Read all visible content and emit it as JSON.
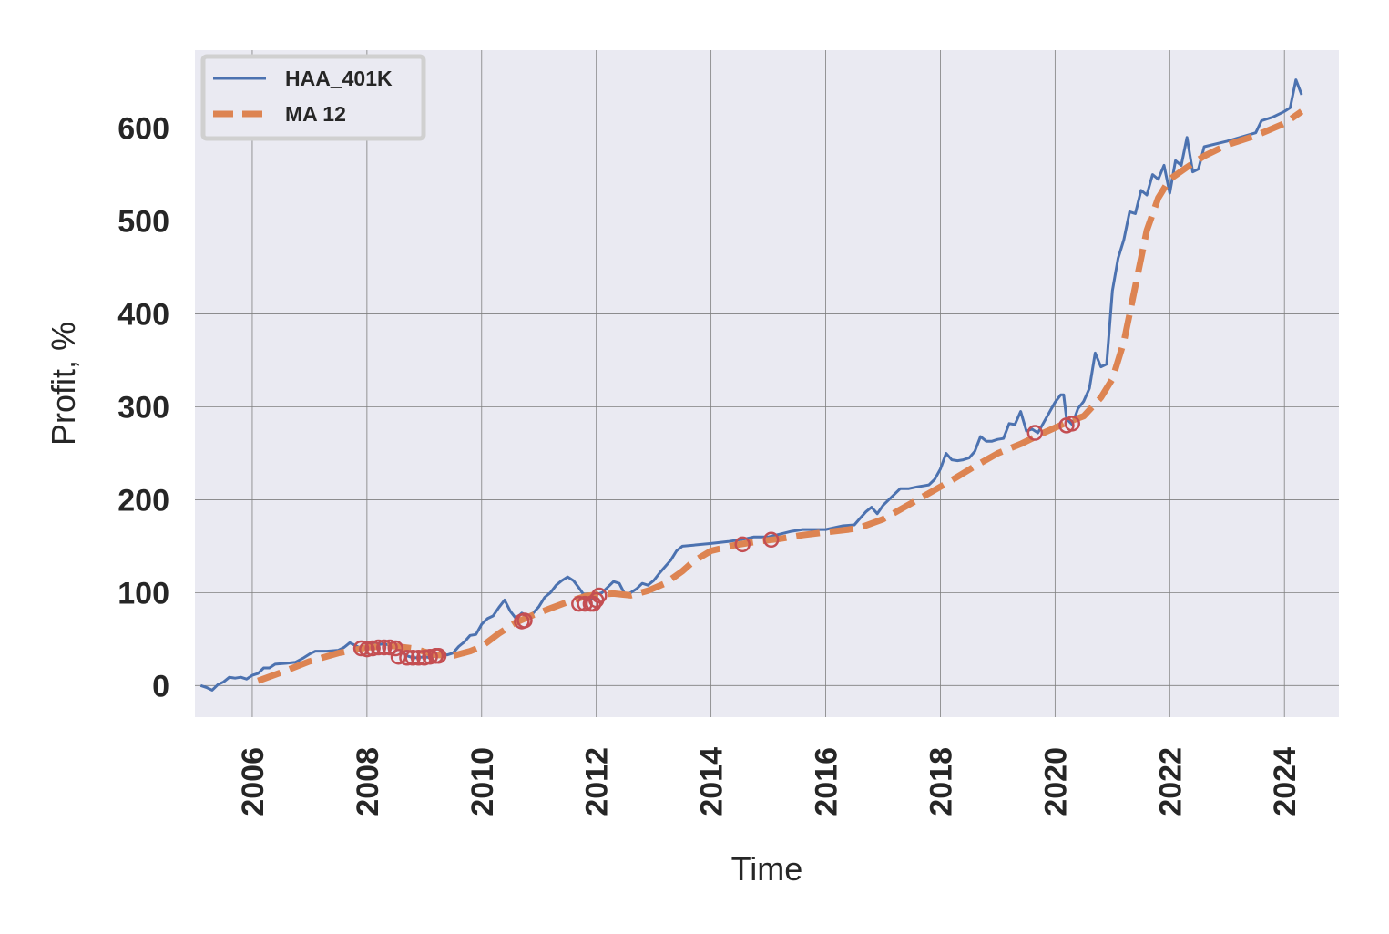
{
  "chart_data": {
    "type": "line",
    "xlabel": "Time",
    "ylabel": "Profit, %",
    "xlim": [
      2005.0,
      2024.95
    ],
    "ylim": [
      -34,
      684
    ],
    "x_ticks": [
      2006,
      2008,
      2010,
      2012,
      2014,
      2016,
      2018,
      2020,
      2022,
      2024
    ],
    "x_tick_labels": [
      "2006",
      "2008",
      "2010",
      "2012",
      "2014",
      "2016",
      "2018",
      "2020",
      "2022",
      "2024"
    ],
    "y_ticks": [
      0,
      100,
      200,
      300,
      400,
      500,
      600
    ],
    "y_tick_labels": [
      "0",
      "100",
      "200",
      "300",
      "400",
      "500",
      "600"
    ],
    "grid": true,
    "legend": "top-left",
    "colors": {
      "background": "#eaeaf2",
      "grid": "#7f7f7f",
      "series1": "#4c72b0",
      "series2": "#dd8452",
      "markers": "#c44e52"
    },
    "series": [
      {
        "name": "HAA_401K",
        "style": "solid",
        "points": [
          [
            2005.1,
            0
          ],
          [
            2005.2,
            -2
          ],
          [
            2005.3,
            -5
          ],
          [
            2005.4,
            1
          ],
          [
            2005.5,
            4
          ],
          [
            2005.6,
            9
          ],
          [
            2005.7,
            8
          ],
          [
            2005.8,
            9
          ],
          [
            2005.9,
            7
          ],
          [
            2006.0,
            11
          ],
          [
            2006.1,
            13
          ],
          [
            2006.2,
            19
          ],
          [
            2006.3,
            19
          ],
          [
            2006.4,
            23
          ],
          [
            2006.6,
            24
          ],
          [
            2006.75,
            25
          ],
          [
            2006.9,
            30
          ],
          [
            2007.0,
            34
          ],
          [
            2007.1,
            37
          ],
          [
            2007.3,
            37
          ],
          [
            2007.5,
            38
          ],
          [
            2007.6,
            41
          ],
          [
            2007.7,
            46
          ],
          [
            2007.8,
            43
          ],
          [
            2007.9,
            40
          ],
          [
            2008.0,
            44
          ],
          [
            2008.1,
            47
          ],
          [
            2008.2,
            44
          ],
          [
            2008.3,
            45
          ],
          [
            2008.4,
            43
          ],
          [
            2008.5,
            44
          ],
          [
            2008.6,
            37
          ],
          [
            2008.7,
            32
          ],
          [
            2008.8,
            30
          ],
          [
            2008.9,
            30
          ],
          [
            2009.0,
            31
          ],
          [
            2009.1,
            30
          ],
          [
            2009.2,
            32
          ],
          [
            2009.3,
            34
          ],
          [
            2009.4,
            33
          ],
          [
            2009.5,
            35
          ],
          [
            2009.6,
            42
          ],
          [
            2009.7,
            47
          ],
          [
            2009.8,
            54
          ],
          [
            2009.9,
            55
          ],
          [
            2010.0,
            66
          ],
          [
            2010.1,
            72
          ],
          [
            2010.2,
            75
          ],
          [
            2010.3,
            84
          ],
          [
            2010.4,
            92
          ],
          [
            2010.5,
            80
          ],
          [
            2010.6,
            72
          ],
          [
            2010.7,
            78
          ],
          [
            2010.8,
            75
          ],
          [
            2010.9,
            78
          ],
          [
            2011.0,
            85
          ],
          [
            2011.1,
            95
          ],
          [
            2011.2,
            100
          ],
          [
            2011.3,
            108
          ],
          [
            2011.4,
            113
          ],
          [
            2011.5,
            117
          ],
          [
            2011.6,
            113
          ],
          [
            2011.7,
            105
          ],
          [
            2011.8,
            96
          ],
          [
            2011.9,
            92
          ],
          [
            2012.0,
            98
          ],
          [
            2012.1,
            100
          ],
          [
            2012.2,
            106
          ],
          [
            2012.3,
            112
          ],
          [
            2012.4,
            110
          ],
          [
            2012.5,
            98
          ],
          [
            2012.6,
            100
          ],
          [
            2012.7,
            104
          ],
          [
            2012.8,
            110
          ],
          [
            2012.9,
            108
          ],
          [
            2013.0,
            113
          ],
          [
            2013.1,
            121
          ],
          [
            2013.2,
            128
          ],
          [
            2013.3,
            135
          ],
          [
            2013.4,
            145
          ],
          [
            2013.5,
            150
          ],
          [
            2014.0,
            153
          ],
          [
            2014.3,
            155
          ],
          [
            2014.6,
            158
          ],
          [
            2014.75,
            160
          ],
          [
            2015.0,
            160
          ],
          [
            2015.2,
            163
          ],
          [
            2015.4,
            166
          ],
          [
            2015.6,
            168
          ],
          [
            2016.0,
            168
          ],
          [
            2016.3,
            172
          ],
          [
            2016.5,
            173
          ],
          [
            2016.6,
            180
          ],
          [
            2016.7,
            187
          ],
          [
            2016.8,
            192
          ],
          [
            2016.9,
            185
          ],
          [
            2017.0,
            194
          ],
          [
            2017.1,
            200
          ],
          [
            2017.2,
            206
          ],
          [
            2017.3,
            212
          ],
          [
            2017.45,
            212
          ],
          [
            2017.6,
            214
          ],
          [
            2017.8,
            216
          ],
          [
            2017.9,
            222
          ],
          [
            2018.0,
            233
          ],
          [
            2018.1,
            250
          ],
          [
            2018.2,
            243
          ],
          [
            2018.3,
            242
          ],
          [
            2018.4,
            243
          ],
          [
            2018.5,
            245
          ],
          [
            2018.6,
            252
          ],
          [
            2018.7,
            268
          ],
          [
            2018.8,
            263
          ],
          [
            2018.9,
            263
          ],
          [
            2019.0,
            265
          ],
          [
            2019.1,
            266
          ],
          [
            2019.2,
            282
          ],
          [
            2019.3,
            281
          ],
          [
            2019.4,
            295
          ],
          [
            2019.5,
            274
          ],
          [
            2019.6,
            276
          ],
          [
            2019.7,
            272
          ],
          [
            2019.8,
            283
          ],
          [
            2019.9,
            294
          ],
          [
            2020.0,
            305
          ],
          [
            2020.1,
            313
          ],
          [
            2020.15,
            313
          ],
          [
            2020.2,
            287
          ],
          [
            2020.3,
            281
          ],
          [
            2020.4,
            298
          ],
          [
            2020.5,
            306
          ],
          [
            2020.6,
            320
          ],
          [
            2020.7,
            358
          ],
          [
            2020.8,
            343
          ],
          [
            2020.9,
            346
          ],
          [
            2021.0,
            425
          ],
          [
            2021.1,
            460
          ],
          [
            2021.2,
            480
          ],
          [
            2021.3,
            510
          ],
          [
            2021.4,
            508
          ],
          [
            2021.5,
            533
          ],
          [
            2021.6,
            528
          ],
          [
            2021.7,
            550
          ],
          [
            2021.8,
            545
          ],
          [
            2021.9,
            560
          ],
          [
            2022.0,
            530
          ],
          [
            2022.1,
            565
          ],
          [
            2022.2,
            560
          ],
          [
            2022.3,
            590
          ],
          [
            2022.4,
            553
          ],
          [
            2022.5,
            556
          ],
          [
            2022.6,
            580
          ],
          [
            2023.0,
            586
          ],
          [
            2023.5,
            595
          ],
          [
            2023.6,
            608
          ],
          [
            2023.8,
            612
          ],
          [
            2024.0,
            618
          ],
          [
            2024.1,
            622
          ],
          [
            2024.2,
            652
          ],
          [
            2024.3,
            636
          ]
        ]
      },
      {
        "name": "MA 12",
        "style": "dashed",
        "points": [
          [
            2006.1,
            5
          ],
          [
            2006.5,
            14
          ],
          [
            2007.0,
            26
          ],
          [
            2007.5,
            35
          ],
          [
            2008.0,
            41
          ],
          [
            2008.4,
            43
          ],
          [
            2008.8,
            40
          ],
          [
            2009.2,
            33
          ],
          [
            2009.5,
            32
          ],
          [
            2009.8,
            37
          ],
          [
            2010.0,
            42
          ],
          [
            2010.3,
            56
          ],
          [
            2010.6,
            68
          ],
          [
            2010.9,
            76
          ],
          [
            2011.2,
            83
          ],
          [
            2011.5,
            90
          ],
          [
            2011.8,
            96
          ],
          [
            2012.0,
            98
          ],
          [
            2012.3,
            99
          ],
          [
            2012.6,
            97
          ],
          [
            2012.9,
            102
          ],
          [
            2013.2,
            110
          ],
          [
            2013.5,
            123
          ],
          [
            2013.7,
            134
          ],
          [
            2014.0,
            145
          ],
          [
            2014.4,
            151
          ],
          [
            2014.8,
            155
          ],
          [
            2015.2,
            158
          ],
          [
            2015.6,
            162
          ],
          [
            2016.0,
            165
          ],
          [
            2016.4,
            168
          ],
          [
            2016.6,
            170
          ],
          [
            2017.0,
            179
          ],
          [
            2017.4,
            193
          ],
          [
            2017.8,
            207
          ],
          [
            2018.2,
            221
          ],
          [
            2018.6,
            236
          ],
          [
            2019.0,
            250
          ],
          [
            2019.4,
            260
          ],
          [
            2019.8,
            272
          ],
          [
            2020.2,
            283
          ],
          [
            2020.5,
            290
          ],
          [
            2020.8,
            310
          ],
          [
            2021.0,
            330
          ],
          [
            2021.2,
            370
          ],
          [
            2021.4,
            430
          ],
          [
            2021.6,
            490
          ],
          [
            2021.8,
            525
          ],
          [
            2022.0,
            545
          ],
          [
            2022.3,
            558
          ],
          [
            2022.6,
            570
          ],
          [
            2023.0,
            582
          ],
          [
            2023.5,
            592
          ],
          [
            2024.0,
            605
          ],
          [
            2024.3,
            618
          ]
        ]
      }
    ],
    "markers": {
      "style": "open-circle",
      "points": [
        [
          2007.9,
          40
        ],
        [
          2008.0,
          39
        ],
        [
          2008.1,
          40
        ],
        [
          2008.2,
          41
        ],
        [
          2008.3,
          41
        ],
        [
          2008.4,
          41
        ],
        [
          2008.5,
          40
        ],
        [
          2008.55,
          31
        ],
        [
          2008.7,
          30
        ],
        [
          2008.8,
          30
        ],
        [
          2008.9,
          30
        ],
        [
          2009.0,
          30
        ],
        [
          2009.1,
          31
        ],
        [
          2009.2,
          32
        ],
        [
          2009.25,
          32
        ],
        [
          2010.7,
          69
        ],
        [
          2010.75,
          70
        ],
        [
          2011.7,
          88
        ],
        [
          2011.8,
          88
        ],
        [
          2011.9,
          88
        ],
        [
          2011.95,
          88
        ],
        [
          2012.0,
          92
        ],
        [
          2012.05,
          97
        ],
        [
          2014.55,
          152
        ],
        [
          2015.05,
          157
        ],
        [
          2019.65,
          272
        ],
        [
          2020.2,
          280
        ],
        [
          2020.3,
          282
        ]
      ]
    }
  }
}
